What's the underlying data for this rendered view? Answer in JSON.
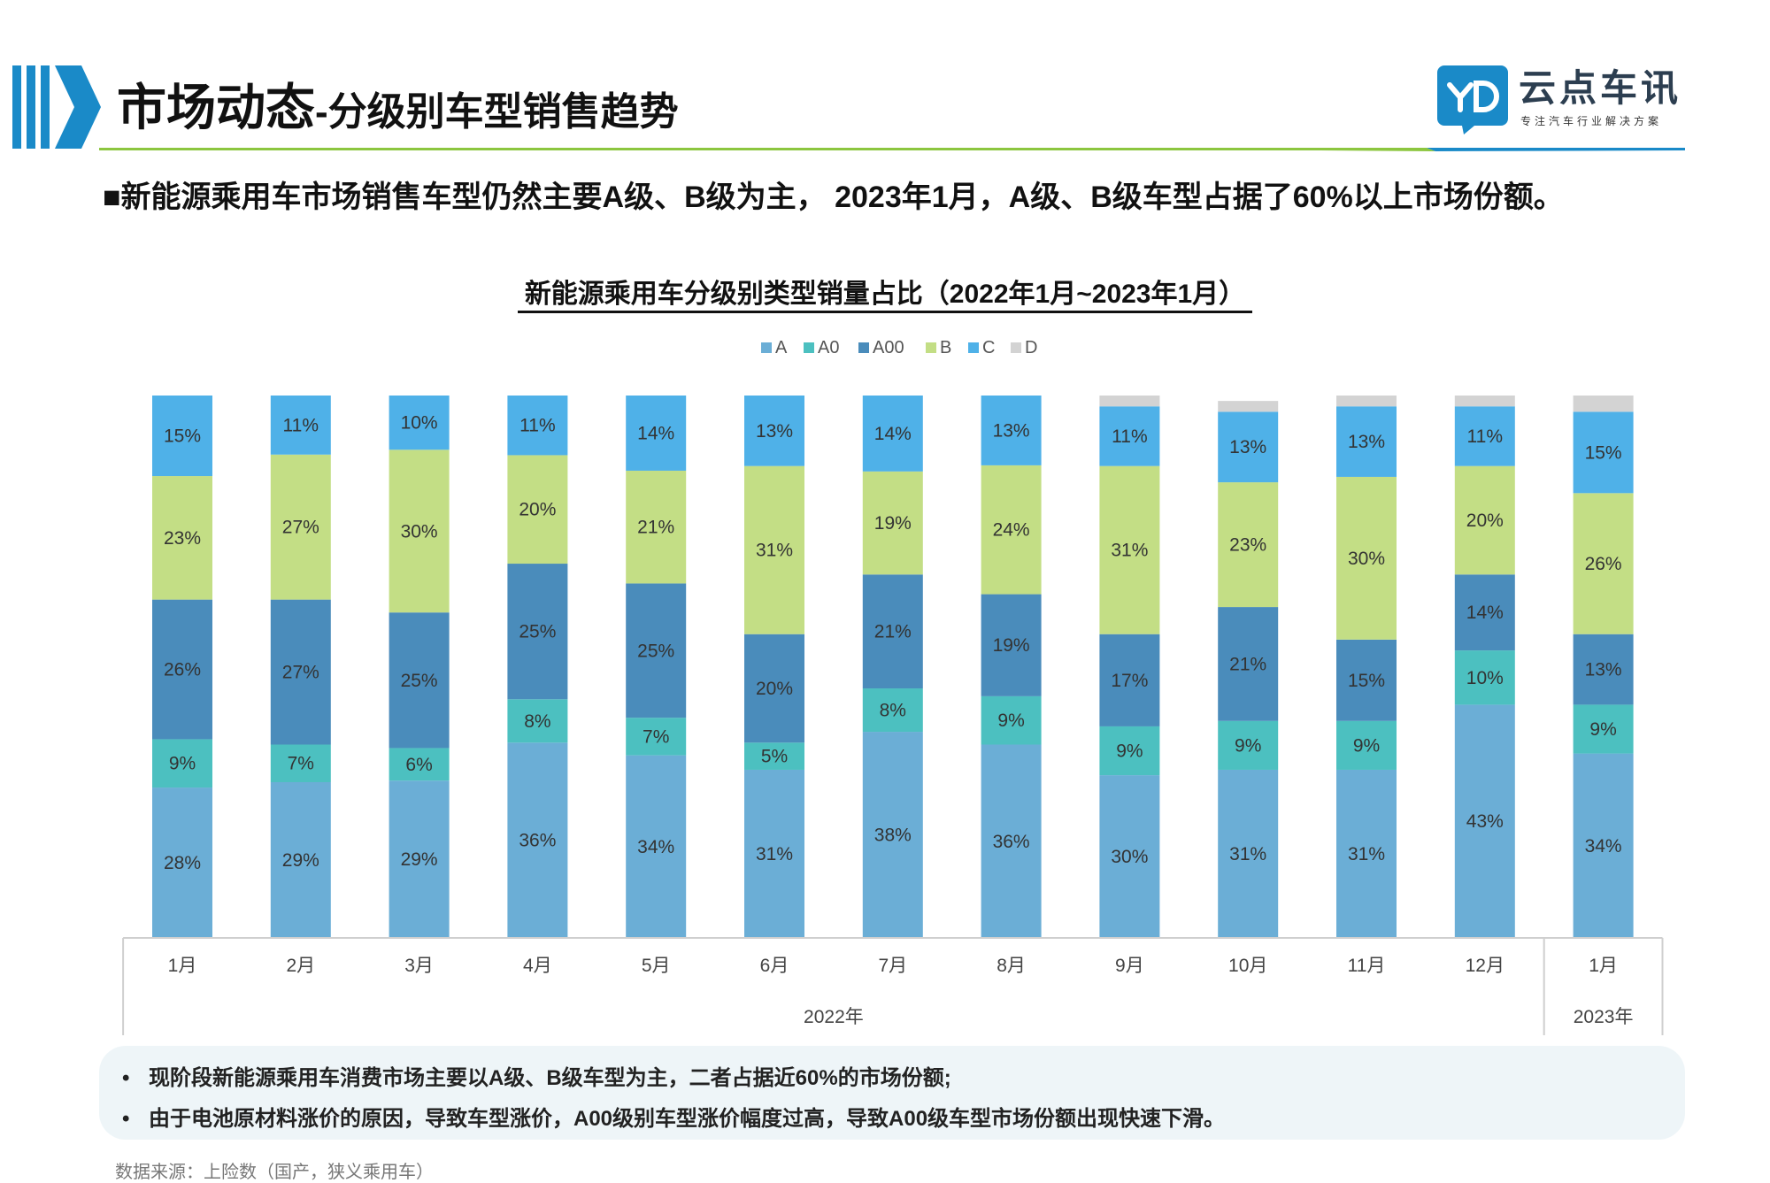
{
  "header": {
    "title_main": "市场动态",
    "title_sub": "-分级别车型销售趋势",
    "brand_name": "云点车讯",
    "brand_tagline": "专注汽车行业解决方案",
    "accent_color": "#1a8ac8",
    "rule_color": "#8cc63f"
  },
  "headline": "■新能源乘用车市场销售车型仍然主要A级、B级为主， 2023年1月，A级、B级车型占据了60%以上市场份额。",
  "chart_data": {
    "type": "bar",
    "stacked": true,
    "title": "新能源乘用车分级别类型销量占比（2022年1月~2023年1月）",
    "categories": [
      "1月",
      "2月",
      "3月",
      "4月",
      "5月",
      "6月",
      "7月",
      "8月",
      "9月",
      "10月",
      "11月",
      "12月",
      "1月"
    ],
    "groups": [
      {
        "label": "2022年",
        "count": 12
      },
      {
        "label": "2023年",
        "count": 1
      }
    ],
    "legend_position": "top",
    "ylim": [
      0,
      100
    ],
    "grid": false,
    "series": [
      {
        "name": "A",
        "color": "#6baed6",
        "values": [
          28,
          29,
          29,
          36,
          34,
          31,
          38,
          36,
          30,
          31,
          31,
          43,
          34
        ],
        "labels": [
          "28%",
          "29%",
          "29%",
          "36%",
          "34%",
          "31%",
          "38%",
          "36%",
          "30%",
          "31%",
          "31%",
          "43%",
          "34%"
        ]
      },
      {
        "name": "A0",
        "color": "#4cc0c0",
        "values": [
          9,
          7,
          6,
          8,
          7,
          5,
          8,
          9,
          9,
          9,
          9,
          10,
          9
        ],
        "labels": [
          "9%",
          "7%",
          "6%",
          "8%",
          "7%",
          "5%",
          "8%",
          "9%",
          "9%",
          "9%",
          "9%",
          "10%",
          "9%"
        ]
      },
      {
        "name": "A00",
        "color": "#4a8cbb",
        "values": [
          26,
          27,
          25,
          25,
          25,
          20,
          21,
          19,
          17,
          21,
          15,
          14,
          13
        ],
        "labels": [
          "26%",
          "27%",
          "25%",
          "25%",
          "25%",
          "20%",
          "21%",
          "19%",
          "17%",
          "21%",
          "15%",
          "14%",
          "13%"
        ]
      },
      {
        "name": "B",
        "color": "#c3de85",
        "values": [
          23,
          27,
          30,
          20,
          21,
          31,
          19,
          24,
          31,
          23,
          30,
          20,
          26
        ],
        "labels": [
          "23%",
          "27%",
          "30%",
          "20%",
          "21%",
          "31%",
          "19%",
          "24%",
          "31%",
          "23%",
          "30%",
          "20%",
          "26%"
        ]
      },
      {
        "name": "C",
        "color": "#4fb1e8",
        "values": [
          15,
          11,
          10,
          11,
          14,
          13,
          14,
          13,
          11,
          13,
          13,
          11,
          15
        ],
        "labels": [
          "15%",
          "11%",
          "10%",
          "11%",
          "14%",
          "13%",
          "14%",
          "13%",
          "11%",
          "13%",
          "13%",
          "11%",
          "15%"
        ]
      },
      {
        "name": "D",
        "color": "#d3d3d3",
        "values": [
          0,
          0,
          0,
          0,
          0,
          0,
          0,
          0,
          2,
          2,
          2,
          2,
          3
        ],
        "labels": [
          "",
          "",
          "",
          "",
          "",
          "",
          "",
          "",
          "",
          "",
          "",
          "",
          ""
        ]
      }
    ]
  },
  "notes": [
    "现阶段新能源乘用车消费市场主要以A级、B级车型为主，二者占据近60%的市场份额;",
    "由于电池原材料涨价的原因，导致车型涨价，A00级别车型涨价幅度过高，导致A00级车型市场份额出现快速下滑。"
  ],
  "note_bullet": "•",
  "source": "数据来源：上险数（国产，狭义乘用车）"
}
